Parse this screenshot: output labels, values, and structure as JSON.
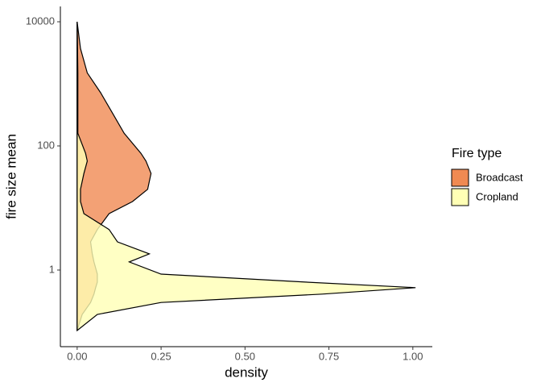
{
  "chart_data": {
    "type": "density",
    "x_label": "density",
    "y_label": "fire size mean",
    "legend_title": "Fire type",
    "legend_position": "right",
    "log_y": true,
    "xlim": [
      -0.05,
      1.058
    ],
    "ylim": [
      0.0583,
      17660
    ],
    "xticks": [
      {
        "value": 0,
        "label": "0.00"
      },
      {
        "value": 0.25,
        "label": "0.25"
      },
      {
        "value": 0.5,
        "label": "0.50"
      },
      {
        "value": 0.75,
        "label": "0.75"
      },
      {
        "value": 1,
        "label": "1.00"
      }
    ],
    "yticks": [
      1,
      100,
      10000
    ],
    "y": [
      10000,
      3700,
      1500,
      720,
      340,
      160,
      76,
      57,
      36,
      20,
      12.7,
      8.1,
      4.5,
      2.85,
      1.82,
      1.35,
      0.86,
      0.64,
      0.52,
      0.41,
      0.3,
      0.193,
      0.106
    ],
    "series": [
      {
        "name": "Broadcast",
        "color": "#f08a52",
        "values": [
          0,
          0.01,
          0.03,
          0.07,
          0.105,
          0.14,
          0.19,
          0.205,
          0.22,
          0.21,
          0.165,
          0.095,
          0.06,
          0.04,
          0.045,
          0.05,
          0.06,
          0.06,
          0.055,
          0.05,
          0.04,
          0.015,
          0
        ]
      },
      {
        "name": "Cropland",
        "color": "#ffffb5",
        "values": [
          0,
          0.001,
          0.002,
          0.002,
          0.002,
          0.002,
          0.025,
          0.03,
          0.02,
          0.01,
          0.01,
          0.02,
          0.095,
          0.12,
          0.215,
          0.155,
          0.25,
          0.68,
          1.008,
          0.73,
          0.25,
          0.06,
          0
        ]
      }
    ]
  }
}
